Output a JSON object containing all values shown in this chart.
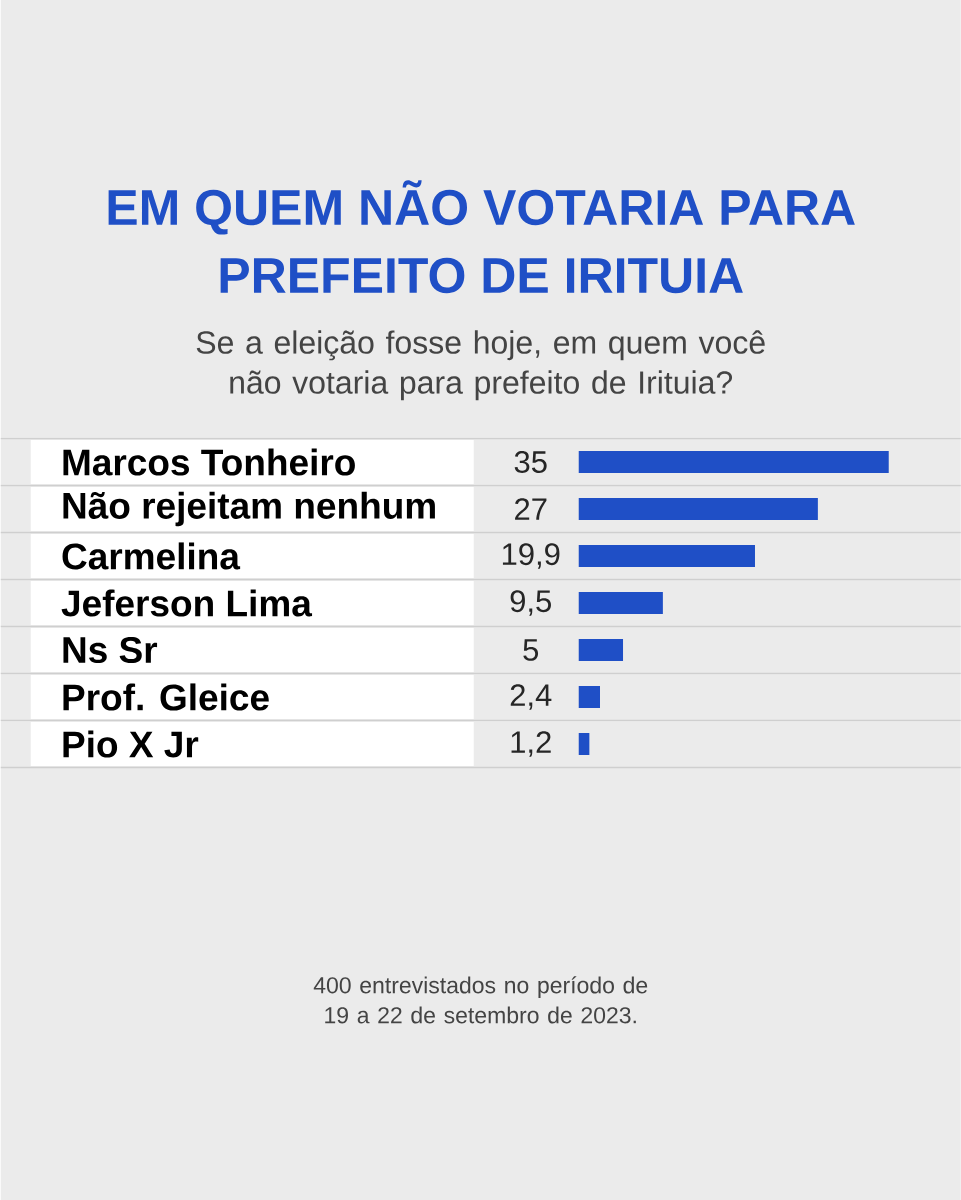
{
  "chart_data": {
    "type": "bar",
    "orientation": "horizontal",
    "title": "EM QUEM NÃO VOTARIA PARA PREFEITO DE IRITUIA",
    "subtitle": "Se a eleição fosse hoje, em quem você não votaria para prefeito de Irituia?",
    "categories": [
      "Marcos Tonheiro",
      "Não rejeitam nenhum",
      "Carmelina",
      "Jeferson Lima",
      "Ns Sr",
      "Prof. Gleice",
      "Pio X Jr"
    ],
    "values": [
      35,
      27,
      19.9,
      9.5,
      5,
      2.4,
      1.2
    ],
    "value_labels": [
      "35",
      "27",
      "19,9",
      "9,5",
      "5",
      "2,4",
      "1,2"
    ],
    "color": "#1f4fc6",
    "annotations": [
      "400 entrevistados no período de 19 a 22 de setembro de 2023."
    ]
  }
}
